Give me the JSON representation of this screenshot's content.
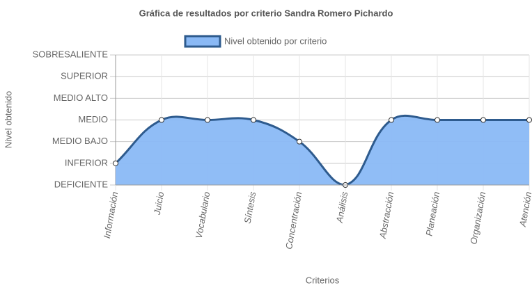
{
  "chart_data": {
    "type": "area",
    "title": "Gráfica de resultados por criterio Sandra Romero Pichardo",
    "x_label": "Criterios",
    "y_label": "Nivel obtenido",
    "categories": [
      "Información",
      "Juicio",
      "Vocabulario",
      "Síntesis",
      "Concentración",
      "Análisis",
      "Abstracción",
      "Planeación",
      "Organización",
      "Atención"
    ],
    "series": [
      {
        "name": "Nivel obtenido por criterio",
        "color": "#8ab9f5",
        "border_color": "#2e5b8e",
        "values": [
          1,
          3,
          3,
          3,
          2,
          0,
          3,
          3,
          3,
          3
        ]
      }
    ],
    "ylim": [
      0,
      6
    ],
    "yticks": [
      {
        "value": 0,
        "label": "DEFICIENTE"
      },
      {
        "value": 1,
        "label": "INFERIOR"
      },
      {
        "value": 2,
        "label": "MEDIO BAJO"
      },
      {
        "value": 3,
        "label": "MEDIO"
      },
      {
        "value": 4,
        "label": "MEDIO ALTO"
      },
      {
        "value": 5,
        "label": "SUPERIOR"
      },
      {
        "value": 6,
        "label": "SOBRESALIENTE"
      }
    ],
    "grid": true,
    "legend": "top"
  }
}
